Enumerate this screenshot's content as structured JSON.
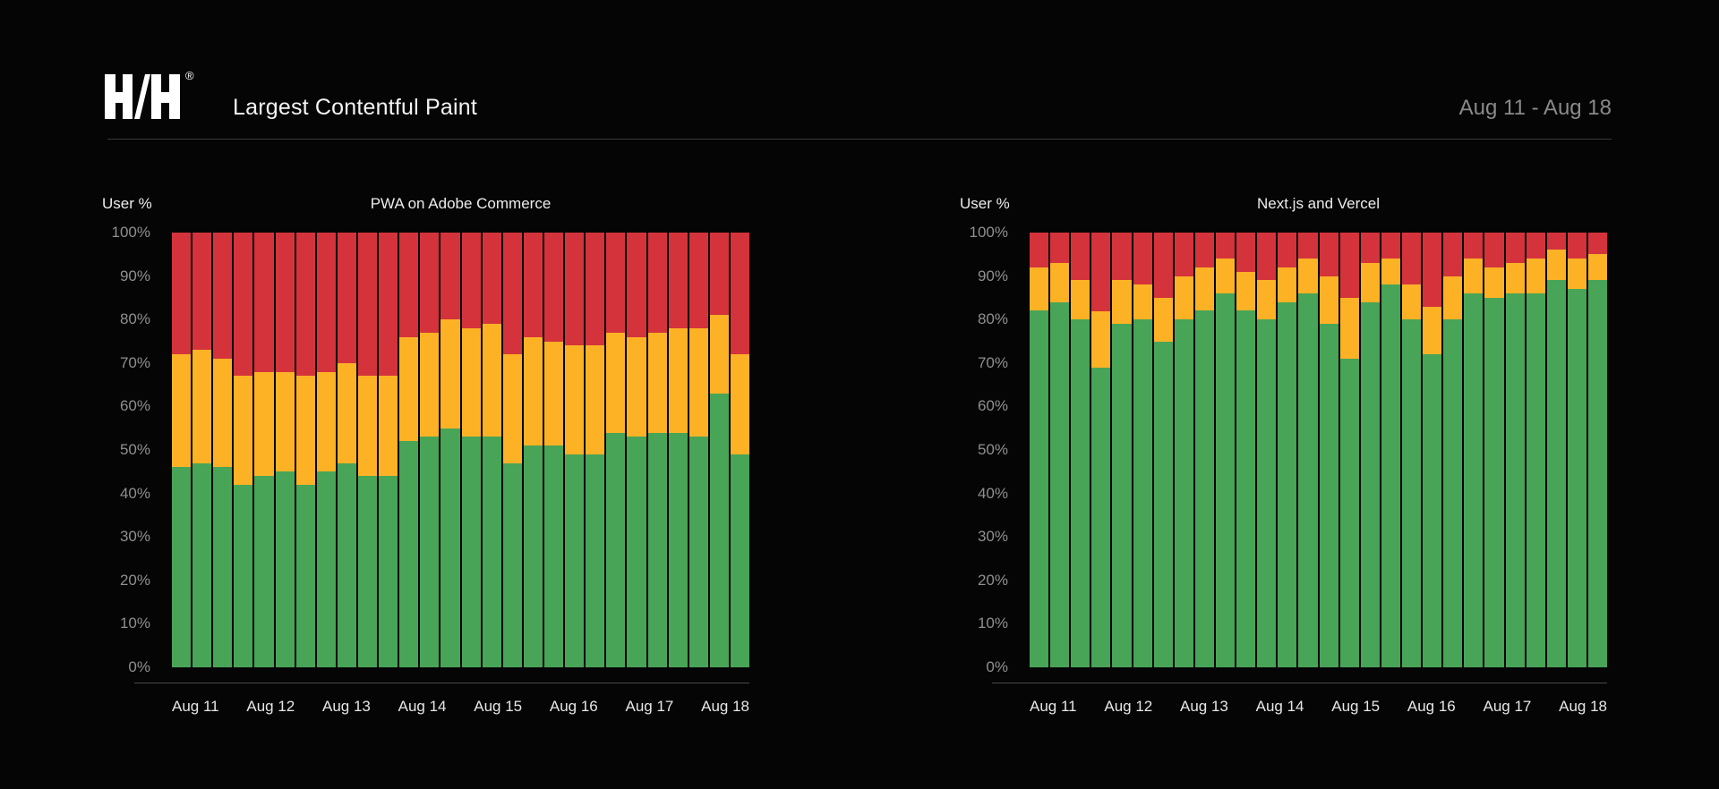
{
  "header": {
    "logo": {
      "brand": "HH",
      "registered_mark": "®"
    },
    "title": "Largest Contentful Paint",
    "date_range": "Aug 11 - Aug 18"
  },
  "colors": {
    "background": "#050505",
    "good": "#48A457",
    "needs_improvement": "#FDB226",
    "poor": "#D4333B",
    "divider": "#3A3A3A",
    "axis_line": "#4A4A4A",
    "y_tick_text": "#8F8F8F",
    "x_tick_text": "#E6E6E6",
    "title_text": "#F4F4F4",
    "date_text": "#8A8A8A"
  },
  "chart_data": [
    {
      "type": "bar",
      "stacked": true,
      "title": "PWA on Adobe Commerce",
      "ylabel": "User %",
      "ylim": [
        0,
        100
      ],
      "grid": false,
      "legend": "none",
      "n_bars": 28,
      "bars_per_day": 4,
      "ytick_labels": [
        "100%",
        "90%",
        "80%",
        "70%",
        "60%",
        "50%",
        "40%",
        "30%",
        "20%",
        "10%",
        "0%"
      ],
      "categories": [
        "Aug 11",
        "Aug 12",
        "Aug 13",
        "Aug 14",
        "Aug 15",
        "Aug 16",
        "Aug 17",
        "Aug 18"
      ],
      "series": [
        {
          "name": "good",
          "color": "#48A457",
          "values": [
            46,
            47,
            46,
            42,
            44,
            45,
            42,
            45,
            47,
            44,
            44,
            52,
            53,
            55,
            53,
            53,
            47,
            51,
            51,
            49,
            49,
            54,
            53,
            54,
            54,
            53,
            63,
            49
          ]
        },
        {
          "name": "needs_improvement",
          "color": "#FDB226",
          "values": [
            26,
            26,
            25,
            25,
            24,
            23,
            25,
            23,
            23,
            23,
            23,
            24,
            24,
            25,
            25,
            26,
            25,
            25,
            24,
            25,
            25,
            23,
            23,
            23,
            24,
            25,
            18,
            23
          ]
        },
        {
          "name": "poor",
          "color": "#D4333B",
          "values": [
            28,
            27,
            29,
            33,
            32,
            32,
            33,
            32,
            30,
            33,
            33,
            24,
            23,
            20,
            22,
            21,
            28,
            24,
            25,
            26,
            26,
            23,
            24,
            23,
            22,
            22,
            19,
            28
          ]
        }
      ]
    },
    {
      "type": "bar",
      "stacked": true,
      "title": "Next.js and Vercel",
      "ylabel": "User %",
      "ylim": [
        0,
        100
      ],
      "grid": false,
      "legend": "none",
      "n_bars": 28,
      "bars_per_day": 4,
      "ytick_labels": [
        "100%",
        "90%",
        "80%",
        "70%",
        "60%",
        "50%",
        "40%",
        "30%",
        "20%",
        "10%",
        "0%"
      ],
      "categories": [
        "Aug 11",
        "Aug 12",
        "Aug 13",
        "Aug 14",
        "Aug 15",
        "Aug 16",
        "Aug 17",
        "Aug 18"
      ],
      "series": [
        {
          "name": "good",
          "color": "#48A457",
          "values": [
            82,
            84,
            80,
            69,
            79,
            80,
            75,
            80,
            82,
            86,
            82,
            80,
            84,
            86,
            79,
            71,
            84,
            88,
            80,
            72,
            80,
            86,
            85,
            86,
            86,
            89,
            87,
            89
          ]
        },
        {
          "name": "needs_improvement",
          "color": "#FDB226",
          "values": [
            10,
            9,
            9,
            13,
            10,
            8,
            10,
            10,
            10,
            8,
            9,
            9,
            8,
            8,
            11,
            14,
            9,
            6,
            8,
            11,
            10,
            8,
            7,
            7,
            8,
            7,
            7,
            6
          ]
        },
        {
          "name": "poor",
          "color": "#D4333B",
          "values": [
            8,
            7,
            11,
            18,
            11,
            12,
            15,
            10,
            8,
            6,
            9,
            11,
            8,
            6,
            10,
            15,
            7,
            6,
            12,
            17,
            10,
            6,
            8,
            7,
            6,
            4,
            6,
            5
          ]
        }
      ]
    }
  ]
}
